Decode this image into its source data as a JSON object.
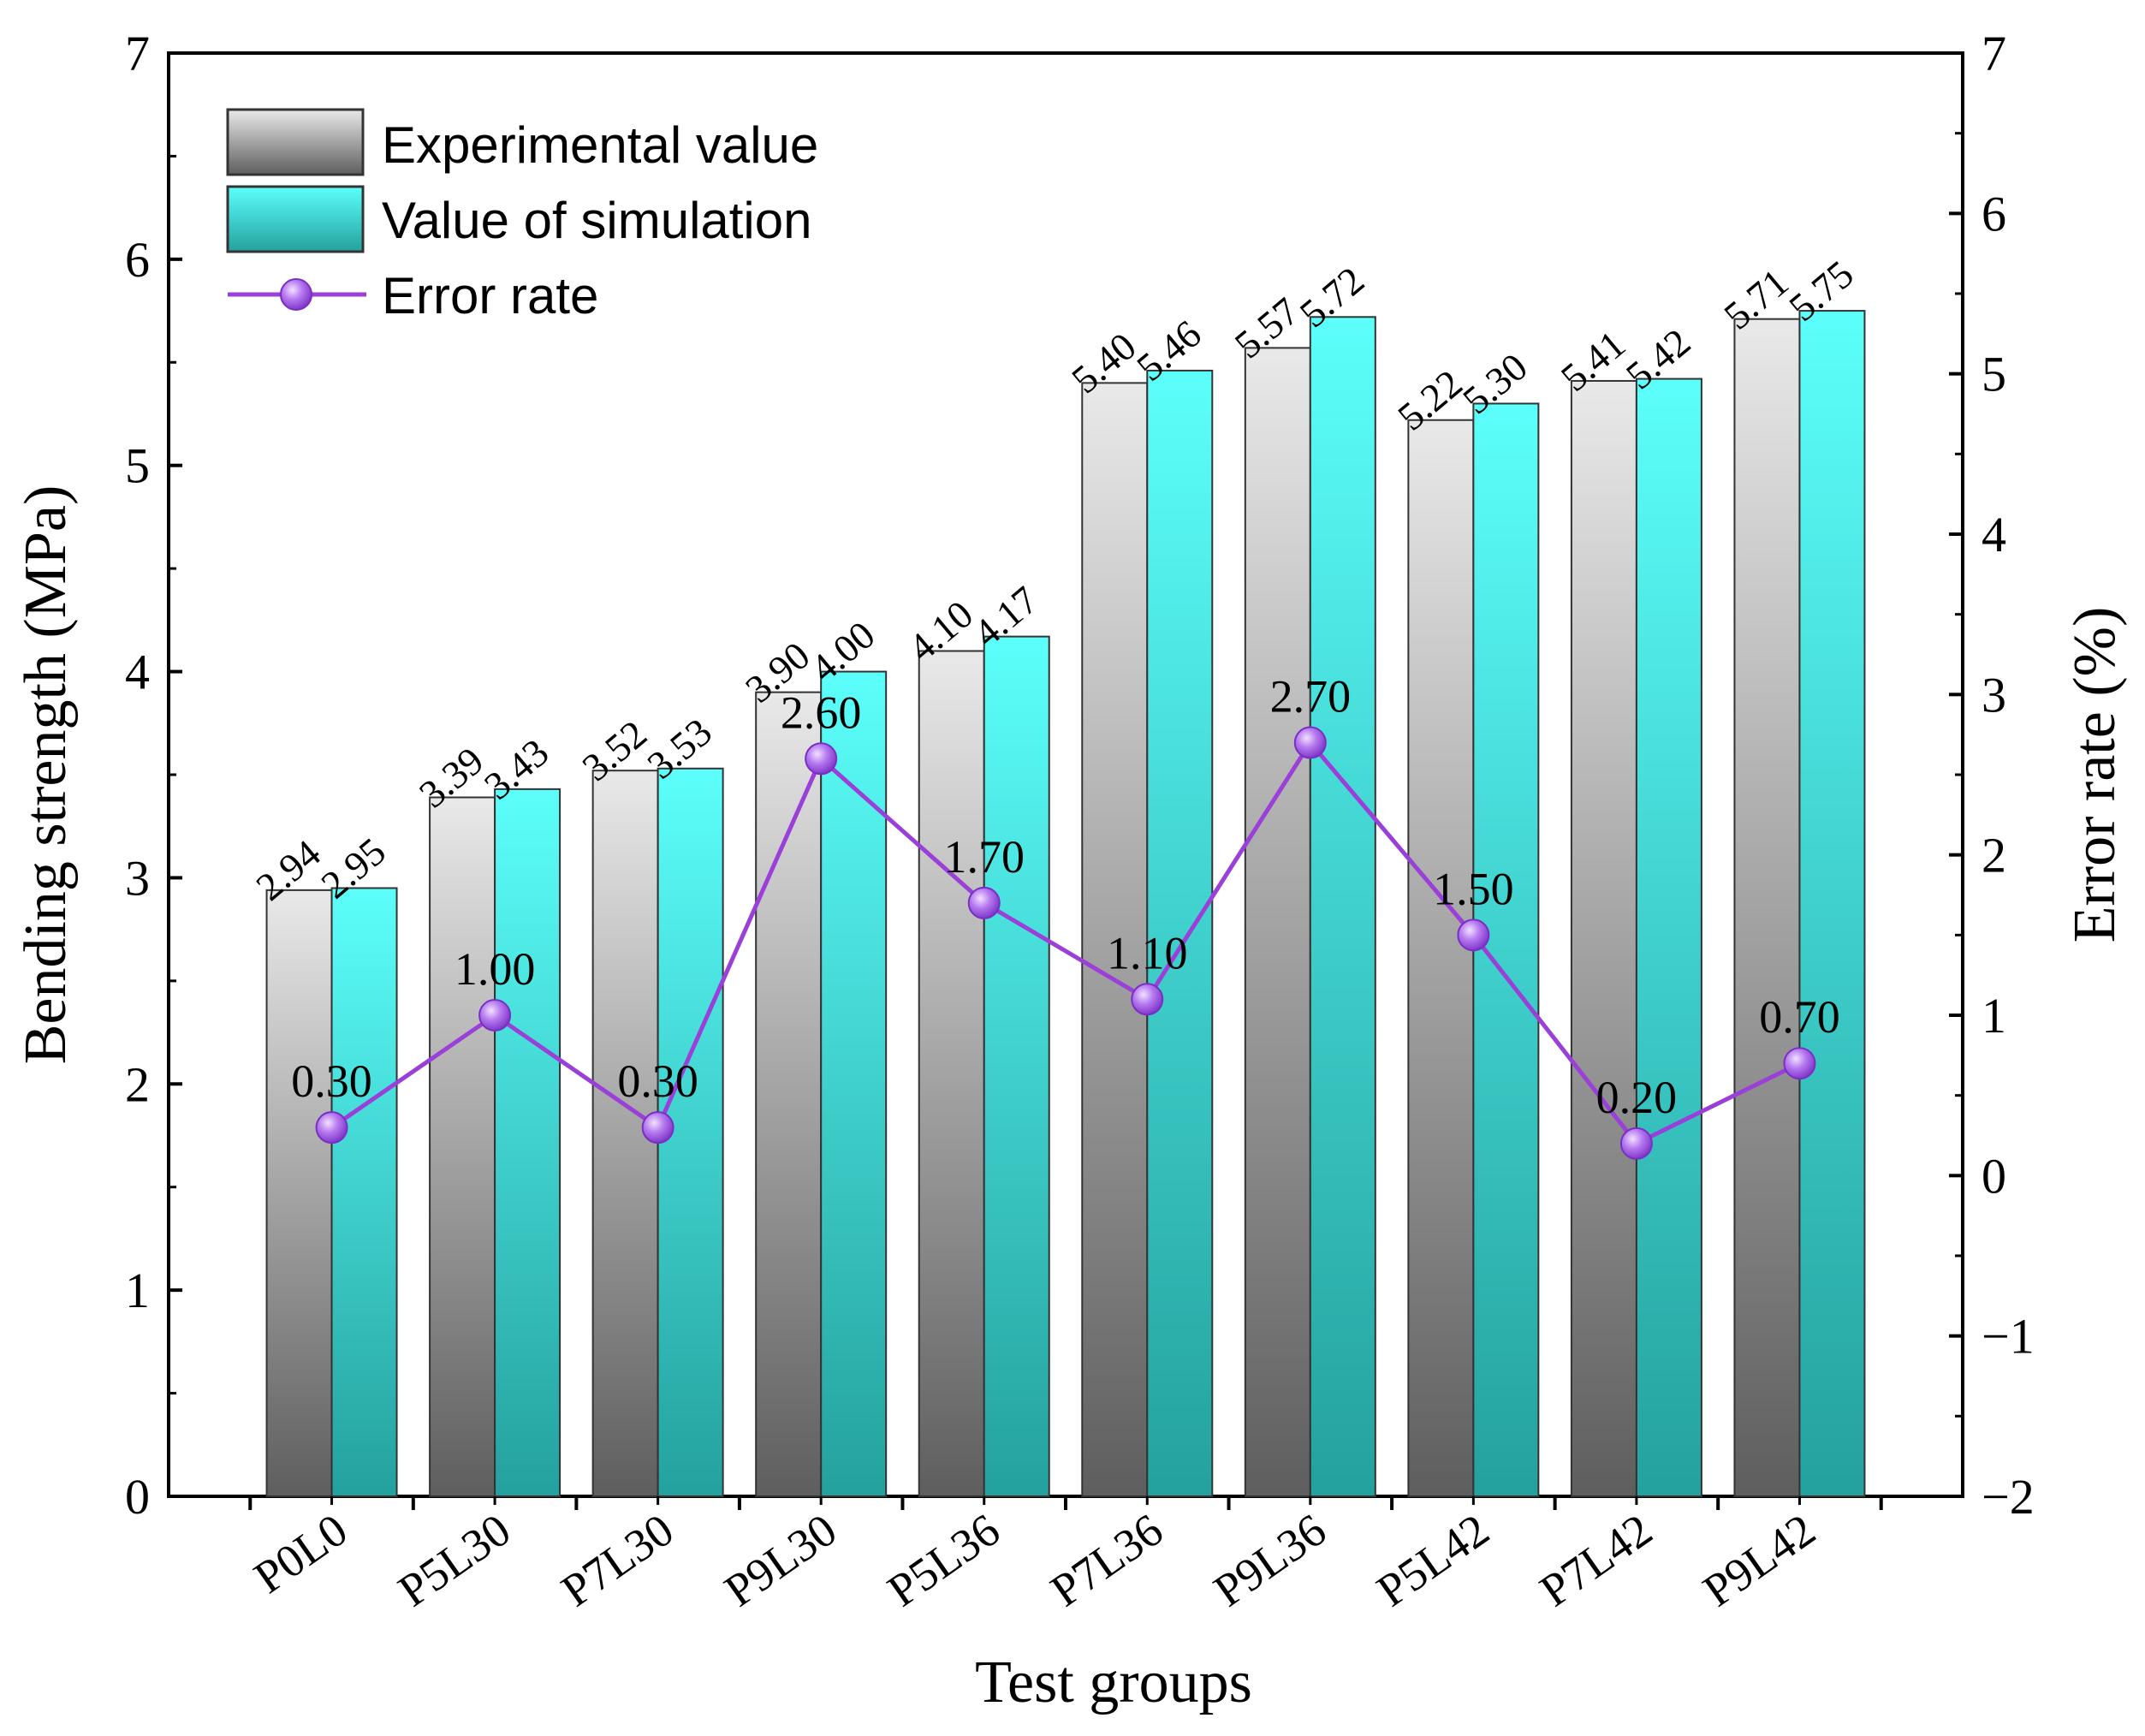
{
  "chart_data": {
    "type": "bar",
    "xlabel": "Test groups",
    "ylabel": "Bending strength (MPa)",
    "y2label": "Error rate (%)",
    "categories": [
      "P0L0",
      "P5L30",
      "P7L30",
      "P9L30",
      "P5L36",
      "P7L36",
      "P9L36",
      "P5L42",
      "P7L42",
      "P9L42"
    ],
    "series": [
      {
        "name": "Experimental value",
        "type": "bar",
        "axis": "left",
        "values": [
          2.94,
          3.39,
          3.52,
          3.9,
          4.1,
          5.4,
          5.57,
          5.22,
          5.41,
          5.71
        ],
        "labels": [
          "2.94",
          "3.39",
          "3.52",
          "3.90",
          "4.10",
          "5.40",
          "5.57",
          "5.22",
          "5.41",
          "5.71"
        ]
      },
      {
        "name": "Value of simulation",
        "type": "bar",
        "axis": "left",
        "values": [
          2.95,
          3.43,
          3.53,
          4.0,
          4.17,
          5.46,
          5.72,
          5.3,
          5.42,
          5.75
        ],
        "labels": [
          "2.95",
          "3.43",
          "3.53",
          "4.00",
          "4.17",
          "5.46",
          "5.72",
          "5.30",
          "5.42",
          "5.75"
        ]
      },
      {
        "name": "Error rate",
        "type": "line",
        "axis": "right",
        "values": [
          0.3,
          1.0,
          0.3,
          2.6,
          1.7,
          1.1,
          2.7,
          1.5,
          0.2,
          0.7
        ],
        "labels": [
          "0.30",
          "1.00",
          "0.30",
          "2.60",
          "1.70",
          "1.10",
          "2.70",
          "1.50",
          "0.20",
          "0.70"
        ]
      }
    ],
    "ylim": [
      0,
      7
    ],
    "y2lim": [
      -2,
      7
    ],
    "yticks": [
      "0",
      "1",
      "2",
      "3",
      "4",
      "5",
      "6",
      "7"
    ],
    "y2ticks": [
      "−2",
      "−1",
      "0",
      "1",
      "2",
      "3",
      "4",
      "5",
      "6",
      "7"
    ],
    "legend_position": "top-left",
    "grid": false,
    "colors": {
      "experimental_light": "#e6e6e6",
      "experimental_dark": "#5e5e5e",
      "simulation_light": "#55fdf9",
      "simulation_dark": "#26a3a0",
      "error_line": "#9b3fd9",
      "error_marker": "#9a4fe0"
    }
  }
}
